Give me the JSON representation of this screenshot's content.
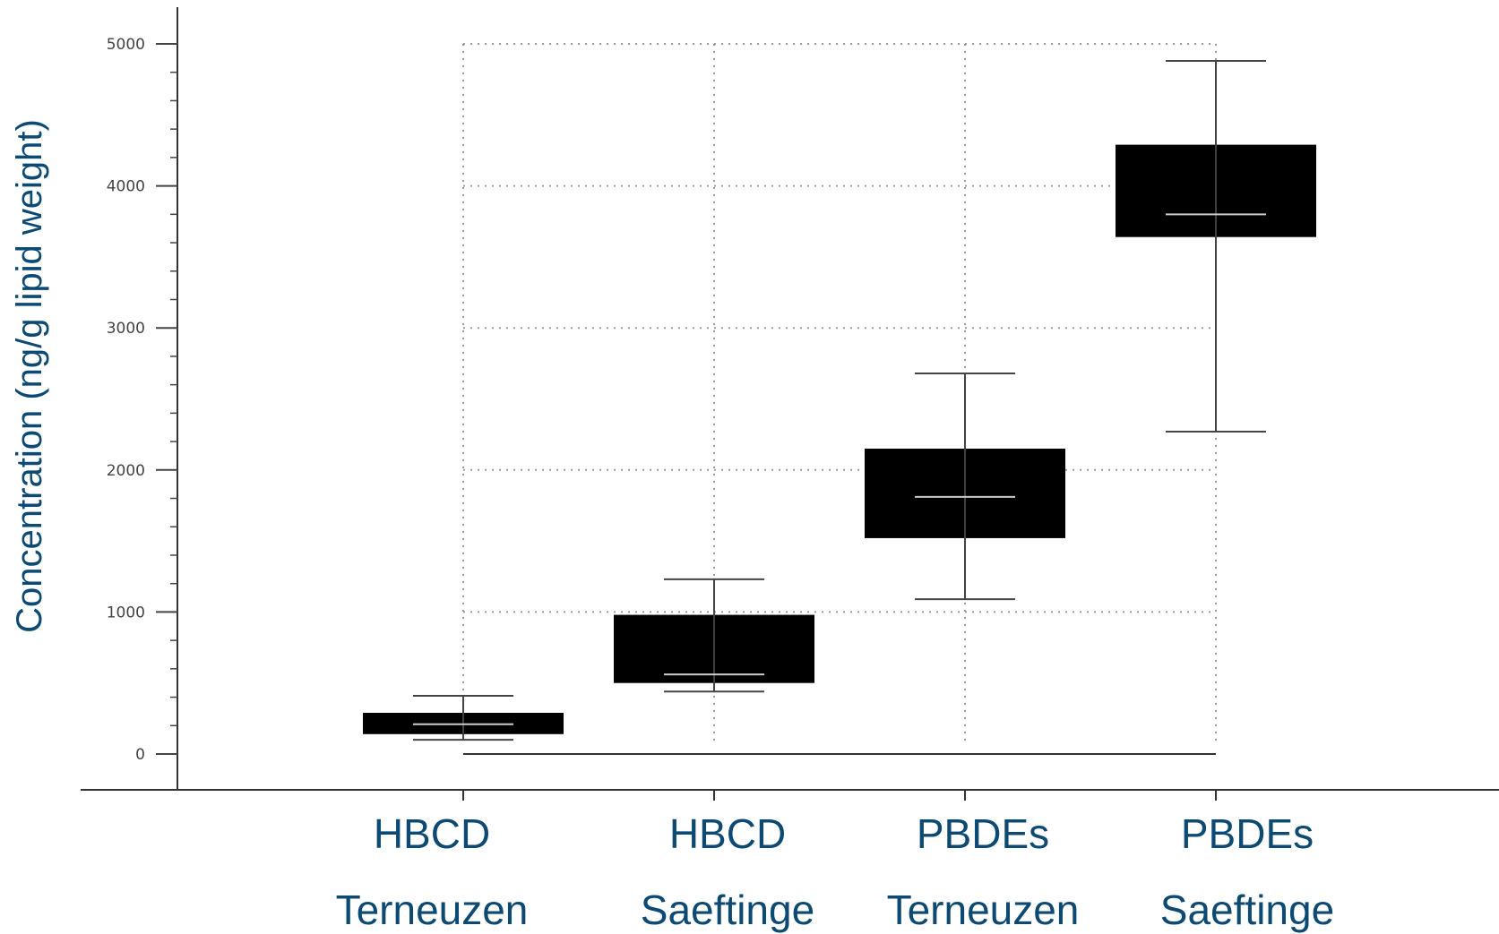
{
  "chart_data": {
    "type": "box",
    "ylabel": "Concentration (ng/g lipid weight)",
    "ylim": [
      0,
      5000
    ],
    "yticks": [
      0,
      1000,
      2000,
      3000,
      4000,
      5000
    ],
    "grid": true,
    "categories": [
      {
        "line1": "HBCD",
        "line2": "Terneuzen"
      },
      {
        "line1": "HBCD",
        "line2": "Saeftinge"
      },
      {
        "line1": "PBDEs",
        "line2": "Terneuzen"
      },
      {
        "line1": "PBDEs",
        "line2": "Saeftinge"
      }
    ],
    "boxes": [
      {
        "min": 100,
        "q1": 140,
        "median": 210,
        "q3": 290,
        "max": 410
      },
      {
        "min": 440,
        "q1": 500,
        "median": 560,
        "q3": 980,
        "max": 1230
      },
      {
        "min": 1090,
        "q1": 1520,
        "median": 1810,
        "q3": 2150,
        "max": 2680
      },
      {
        "min": 2270,
        "q1": 3640,
        "median": 3800,
        "q3": 4290,
        "max": 4880
      }
    ],
    "colors": {
      "box_fill": "#000000",
      "whisker": "#444444",
      "median": "#cccccc",
      "grid": "#9a9a9a",
      "label_text": "#0d4a73"
    }
  }
}
